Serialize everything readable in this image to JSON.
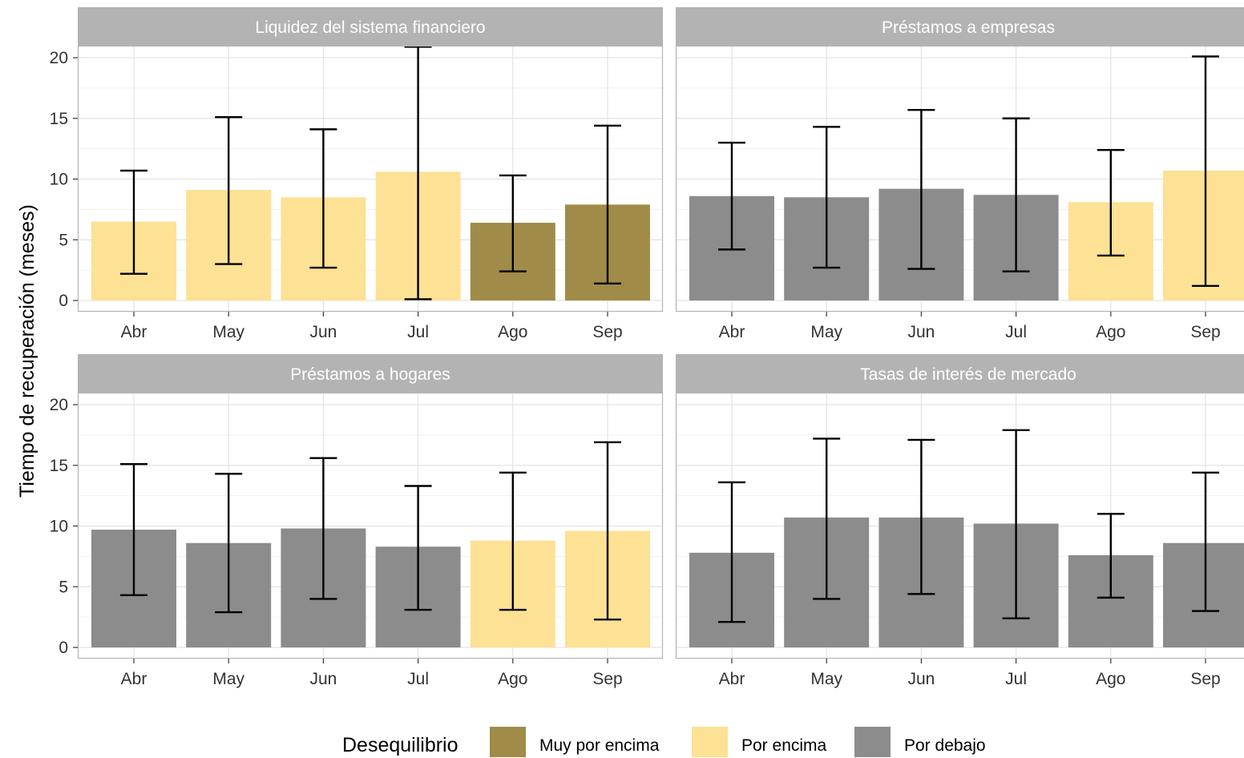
{
  "chart_data": {
    "type": "bar",
    "ylabel": "Tiempo de recuperación (meses)",
    "ylim": [
      0,
      21
    ],
    "yticks": [
      0,
      5,
      10,
      15,
      20
    ],
    "categories": [
      "Abr",
      "May",
      "Jun",
      "Jul",
      "Ago",
      "Sep"
    ],
    "colors": {
      "Muy por encima": "#a08c48",
      "Por encima": "#fde194",
      "Por debajo": "#8c8c8c"
    },
    "legend": {
      "title": "Desequilibrio",
      "position": "bottom",
      "entries": [
        "Muy por encima",
        "Por encima",
        "Por debajo"
      ]
    },
    "grid": true,
    "panels": [
      {
        "title": "Liquidez del sistema financiero",
        "values": [
          6.5,
          9.1,
          8.5,
          10.6,
          6.4,
          7.9
        ],
        "lower": [
          2.2,
          3.0,
          2.7,
          0.1,
          2.4,
          1.4
        ],
        "upper": [
          10.7,
          15.1,
          14.1,
          20.9,
          10.3,
          14.4
        ],
        "groups": [
          "Por encima",
          "Por encima",
          "Por encima",
          "Por encima",
          "Muy por encima",
          "Muy por encima"
        ]
      },
      {
        "title": "Préstamos a empresas",
        "values": [
          8.6,
          8.5,
          9.2,
          8.7,
          8.1,
          10.7
        ],
        "lower": [
          4.2,
          2.7,
          2.6,
          2.4,
          3.7,
          1.2
        ],
        "upper": [
          13.0,
          14.3,
          15.7,
          15.0,
          12.4,
          20.1
        ],
        "groups": [
          "Por debajo",
          "Por debajo",
          "Por debajo",
          "Por debajo",
          "Por encima",
          "Por encima"
        ]
      },
      {
        "title": "Préstamos a hogares",
        "values": [
          9.7,
          8.6,
          9.8,
          8.3,
          8.8,
          9.6
        ],
        "lower": [
          4.3,
          2.9,
          4.0,
          3.1,
          3.1,
          2.3
        ],
        "upper": [
          15.1,
          14.3,
          15.6,
          13.3,
          14.4,
          16.9
        ],
        "groups": [
          "Por debajo",
          "Por debajo",
          "Por debajo",
          "Por debajo",
          "Por encima",
          "Por encima"
        ]
      },
      {
        "title": "Tasas de interés de mercado",
        "values": [
          7.8,
          10.7,
          10.7,
          10.2,
          7.6,
          8.6
        ],
        "lower": [
          2.1,
          4.0,
          4.4,
          2.4,
          4.1,
          3.0
        ],
        "upper": [
          13.6,
          17.2,
          17.1,
          17.9,
          11.0,
          14.4
        ],
        "groups": [
          "Por debajo",
          "Por debajo",
          "Por debajo",
          "Por debajo",
          "Por debajo",
          "Por debajo"
        ]
      }
    ]
  }
}
